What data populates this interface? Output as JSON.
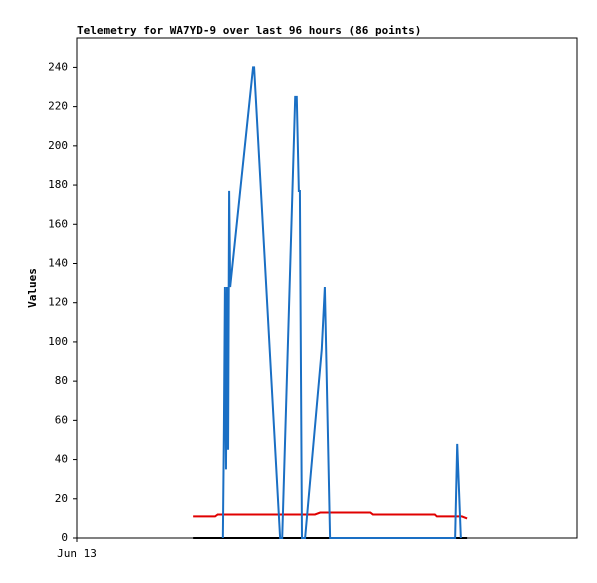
{
  "chart_data": {
    "type": "line",
    "title": "Telemetry for WA7YD-9 over last 96 hours (86 points)",
    "y_label": "Values",
    "xlim": [
      0,
      96
    ],
    "xticks": [
      {
        "value": 0,
        "label": "Jun 13"
      }
    ],
    "ylim": [
      0,
      255
    ],
    "yticks": [
      0,
      20,
      40,
      60,
      80,
      100,
      120,
      140,
      160,
      180,
      200,
      220,
      240
    ],
    "grid": false,
    "series": [
      {
        "color": "#000000",
        "x": [
          22.3,
          74.9
        ],
        "values": [
          0,
          0
        ]
      },
      {
        "color": "#e00000",
        "x": [
          22.3,
          26.5,
          27.0,
          45.7,
          46.7,
          56.3,
          56.8,
          68.7,
          69.1,
          73.9,
          74.9
        ],
        "values": [
          11,
          11,
          12,
          12,
          13,
          13,
          12,
          12,
          11,
          11,
          10
        ]
      },
      {
        "color": "#1a6fc4",
        "x": [
          28.0,
          28.2,
          28.4,
          28.6,
          28.8,
          29.0,
          29.2,
          29.4,
          33.8,
          34.0,
          39.0,
          39.4,
          41.9,
          42.2,
          42.6,
          42.8,
          43.2,
          43.8,
          47.0,
          47.6,
          48.6,
          72.6,
          73.0,
          73.7
        ],
        "values": [
          0,
          55,
          128,
          35,
          128,
          45,
          177,
          128,
          240,
          240,
          0,
          0,
          225,
          225,
          177,
          177,
          0,
          0,
          96,
          128,
          0,
          0,
          48,
          0
        ]
      }
    ]
  }
}
